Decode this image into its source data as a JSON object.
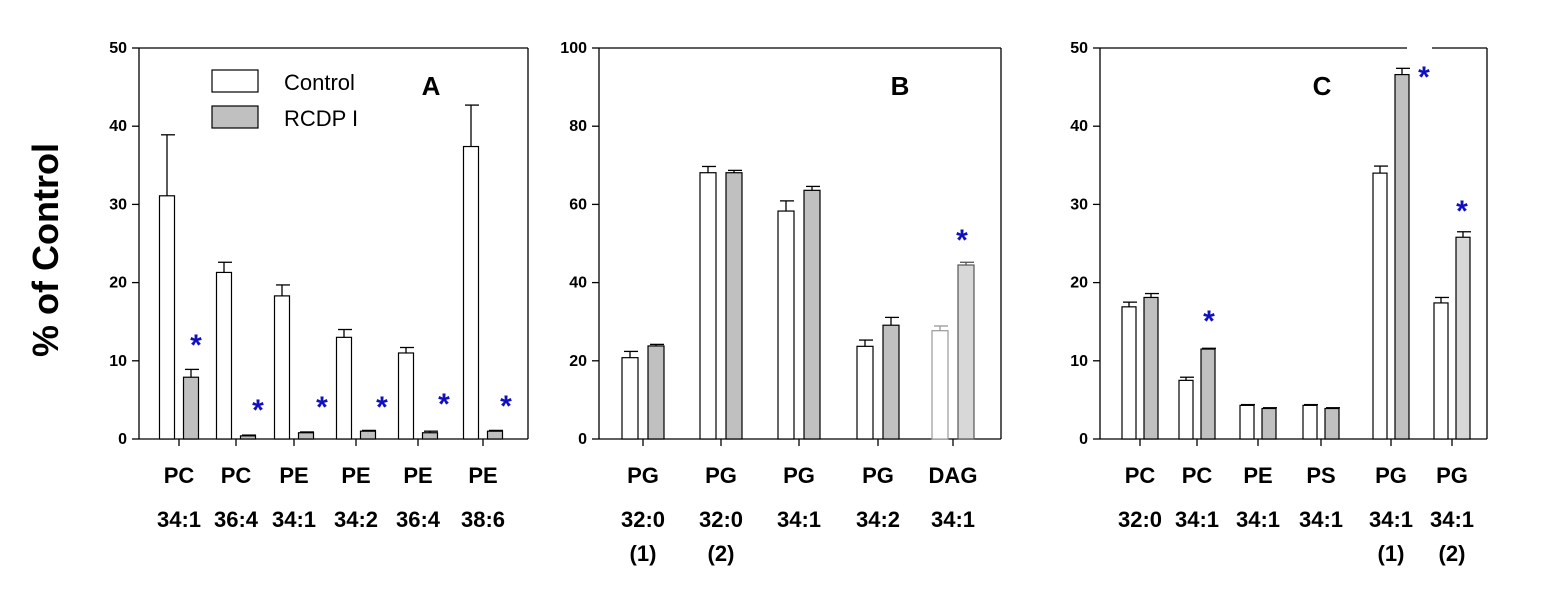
{
  "figure": {
    "ylabel": "% of Control",
    "legend": [
      {
        "label": "Control",
        "color": "#ffffff"
      },
      {
        "label": "RCDP I",
        "color": "#c0c0c0"
      }
    ],
    "star_color": "#1010c0"
  },
  "chart_data": [
    {
      "type": "bar",
      "panel": "A",
      "ylim": [
        0,
        50
      ],
      "yticks": [
        0,
        10,
        20,
        30,
        40,
        50
      ],
      "categories": [
        [
          "PC",
          "34:1"
        ],
        [
          "PC",
          "36:4"
        ],
        [
          "PE",
          "34:1"
        ],
        [
          "PE",
          "34:2"
        ],
        [
          "PE",
          "36:4"
        ],
        [
          "PE",
          "38:6"
        ]
      ],
      "series": [
        {
          "name": "Control",
          "values": [
            31.1,
            21.3,
            18.3,
            13.0,
            11.0,
            37.4
          ],
          "errors": [
            7.8,
            1.3,
            1.4,
            1.0,
            0.7,
            5.3
          ]
        },
        {
          "name": "RCDP I",
          "values": [
            7.9,
            0.4,
            0.8,
            1.0,
            0.8,
            1.0
          ],
          "errors": [
            1.0,
            0.1,
            0.1,
            0.1,
            0.2,
            0.1
          ]
        }
      ],
      "significant": [
        true,
        true,
        true,
        true,
        true,
        true
      ],
      "star_label": "*"
    },
    {
      "type": "bar",
      "panel": "B",
      "ylim": [
        0,
        100
      ],
      "yticks": [
        0,
        20,
        40,
        60,
        80,
        100
      ],
      "categories": [
        [
          "PG",
          "32:0",
          "(1)"
        ],
        [
          "PG",
          "32:0",
          "(2)"
        ],
        [
          "PG",
          "34:1"
        ],
        [
          "PG",
          "34:2"
        ],
        [
          "DAG",
          "34:1"
        ]
      ],
      "series": [
        {
          "name": "Control",
          "values": [
            20.8,
            68.1,
            58.3,
            23.7,
            27.7
          ],
          "errors": [
            1.6,
            1.6,
            2.6,
            1.6,
            1.2
          ]
        },
        {
          "name": "RCDP I",
          "values": [
            23.8,
            68.1,
            63.6,
            29.1,
            44.5
          ],
          "errors": [
            0.4,
            0.6,
            1.0,
            2.0,
            0.7
          ]
        }
      ],
      "significant": [
        false,
        false,
        false,
        false,
        true
      ],
      "star_label": "*"
    },
    {
      "type": "bar",
      "panel": "C",
      "ylim": [
        0,
        50
      ],
      "yticks": [
        0,
        10,
        20,
        30,
        40,
        50
      ],
      "categories": [
        [
          "PC",
          "32:0"
        ],
        [
          "PC",
          "34:1"
        ],
        [
          "PE",
          "34:1"
        ],
        [
          "PS",
          "34:1"
        ],
        [
          "PG",
          "34:1",
          "(1)"
        ],
        [
          "PG",
          "34:1",
          "(2)"
        ]
      ],
      "series": [
        {
          "name": "Control",
          "values": [
            16.9,
            7.5,
            4.3,
            4.3,
            34.0,
            17.4
          ],
          "errors": [
            0.6,
            0.4,
            0.1,
            0.1,
            0.9,
            0.7
          ]
        },
        {
          "name": "RCDP I",
          "values": [
            18.1,
            11.5,
            3.9,
            3.9,
            46.6,
            25.8
          ],
          "errors": [
            0.5,
            0.1,
            0.1,
            0.1,
            0.8,
            0.7
          ]
        }
      ],
      "significant": [
        false,
        true,
        false,
        false,
        true,
        true
      ],
      "star_label": "*"
    }
  ]
}
